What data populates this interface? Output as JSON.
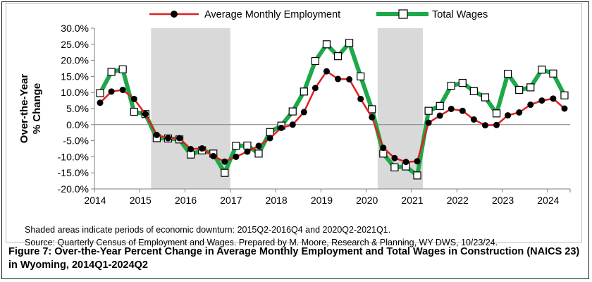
{
  "chart_data": {
    "type": "line",
    "ylabel": "Over-the-Year % Change",
    "ylim": [
      -20,
      30
    ],
    "yticks": [
      30,
      25,
      20,
      15,
      10,
      5,
      0,
      -5,
      -10,
      -15,
      -20
    ],
    "ytick_labels": [
      "30.0%",
      "25.0%",
      "20.0%",
      "15.0%",
      "10.0%",
      "5.0%",
      "0.0%",
      "-5.0%",
      "-10.0%",
      "-15.0%",
      "-20.0%"
    ],
    "xtick_labels": [
      "2014",
      "2015",
      "2016",
      "2017",
      "2018",
      "2019",
      "2020",
      "2021",
      "2022",
      "2023",
      "2024"
    ],
    "x": [
      "2014Q1",
      "2014Q2",
      "2014Q3",
      "2014Q4",
      "2015Q1",
      "2015Q2",
      "2015Q3",
      "2015Q4",
      "2016Q1",
      "2016Q2",
      "2016Q3",
      "2016Q4",
      "2017Q1",
      "2017Q2",
      "2017Q3",
      "2017Q4",
      "2018Q1",
      "2018Q2",
      "2018Q3",
      "2018Q4",
      "2019Q1",
      "2019Q2",
      "2019Q3",
      "2019Q4",
      "2020Q1",
      "2020Q2",
      "2020Q3",
      "2020Q4",
      "2021Q1",
      "2021Q2",
      "2021Q3",
      "2021Q4",
      "2022Q1",
      "2022Q2",
      "2022Q3",
      "2022Q4",
      "2023Q1",
      "2023Q2",
      "2023Q3",
      "2023Q4",
      "2024Q1",
      "2024Q2"
    ],
    "shaded_periods": [
      [
        "2015Q2",
        "2016Q4"
      ],
      [
        "2020Q2",
        "2021Q1"
      ]
    ],
    "legend_position": "top",
    "series": [
      {
        "name": "Average Monthly Employment",
        "color": "#e02020",
        "marker_color": "#000000",
        "values": [
          6.8,
          10.3,
          10.8,
          8.0,
          3.3,
          -3.2,
          -4.2,
          -4.2,
          -7.6,
          -7.4,
          -9.8,
          -11.5,
          -10.0,
          -8.4,
          -6.6,
          -4.2,
          -1.0,
          0.0,
          3.9,
          11.4,
          16.6,
          14.2,
          14.1,
          8.0,
          2.3,
          -7.2,
          -10.4,
          -11.6,
          -11.4,
          0.6,
          2.8,
          4.9,
          4.3,
          1.6,
          -0.2,
          -0.1,
          2.9,
          3.8,
          6.2,
          7.5,
          8.1,
          5.0
        ]
      },
      {
        "name": "Total Wages",
        "color": "#1fa84a",
        "marker_color": "#ffffff",
        "values": [
          9.8,
          16.4,
          17.2,
          4.0,
          3.3,
          -4.2,
          -4.3,
          -4.6,
          -9.3,
          -8.0,
          -9.0,
          -15.0,
          -6.6,
          -6.5,
          -9.0,
          -2.3,
          -0.3,
          4.1,
          10.3,
          19.8,
          25.0,
          21.3,
          25.4,
          15.0,
          4.8,
          -9.0,
          -13.3,
          -13.0,
          -15.8,
          4.3,
          5.8,
          12.1,
          13.0,
          10.4,
          8.5,
          3.5,
          15.8,
          10.8,
          11.6,
          17.1,
          15.9,
          9.1
        ]
      }
    ]
  },
  "notes": {
    "line1": "Shaded areas indicate periods of economic downturn: 2015Q2-2016Q4 and 2020Q2-2021Q1.",
    "line2": "Source: Quarterly Census of Employment and Wages. Prepared by M. Moore, Research & Planning, WY DWS, 10/23/24."
  },
  "caption": "Figure 7: Over-the-Year Percent Change in Average Monthly Employment and Total Wages in Construction (NAICS 23) in Wyoming, 2014Q1-2024Q2"
}
